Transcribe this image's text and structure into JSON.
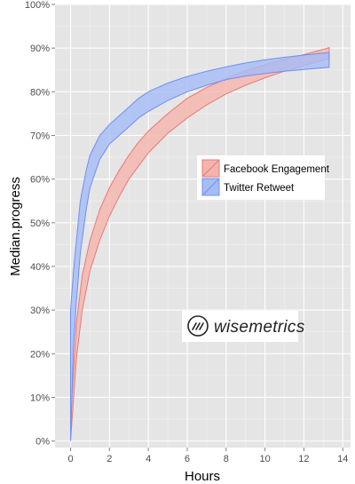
{
  "chart_data": {
    "type": "area",
    "xlabel": "Hours",
    "ylabel": "Median.progress",
    "xlim": [
      -0.8,
      14.4
    ],
    "ylim": [
      -0.015,
      1.0
    ],
    "x_ticks": [
      0,
      2,
      4,
      6,
      8,
      10,
      12,
      14
    ],
    "x_tick_labels": [
      "0",
      "2",
      "4",
      "6",
      "8",
      "10",
      "12",
      "14"
    ],
    "y_ticks": [
      0,
      0.1,
      0.2,
      0.3,
      0.4,
      0.5,
      0.6,
      0.7,
      0.8,
      0.9,
      1.0
    ],
    "y_tick_labels": [
      "0%",
      "10%",
      "20%",
      "30%",
      "40%",
      "50%",
      "60%",
      "70%",
      "80%",
      "90%",
      "100%"
    ],
    "grid": true,
    "legend_position": "right",
    "series": [
      {
        "name": "Facebook Engagement",
        "color": "#e87a72",
        "fill": "#f4b4ac",
        "x": [
          0,
          0.3,
          0.6,
          1.0,
          1.5,
          2.0,
          2.5,
          3.0,
          3.5,
          4.0,
          5.0,
          6.0,
          7.0,
          8.0,
          9.0,
          10.0,
          11.0,
          12.0,
          13.3
        ],
        "upper": [
          0.05,
          0.27,
          0.38,
          0.46,
          0.53,
          0.58,
          0.62,
          0.655,
          0.685,
          0.71,
          0.75,
          0.785,
          0.81,
          0.83,
          0.848,
          0.862,
          0.874,
          0.885,
          0.901
        ],
        "lower": [
          0.0,
          0.19,
          0.3,
          0.39,
          0.46,
          0.515,
          0.56,
          0.6,
          0.63,
          0.66,
          0.705,
          0.74,
          0.77,
          0.795,
          0.815,
          0.832,
          0.847,
          0.86,
          0.876
        ]
      },
      {
        "name": "Twitter Retweet",
        "color": "#6f8ff0",
        "fill": "#a6bcf6",
        "x": [
          0,
          0.15,
          0.3,
          0.5,
          0.8,
          1.0,
          1.5,
          2.0,
          2.5,
          3.0,
          3.5,
          4.0,
          5.0,
          6.0,
          7.0,
          8.0,
          9.0,
          10.0,
          11.0,
          12.0,
          13.3
        ],
        "upper": [
          0.3,
          0.39,
          0.46,
          0.55,
          0.62,
          0.655,
          0.7,
          0.725,
          0.745,
          0.765,
          0.785,
          0.8,
          0.82,
          0.835,
          0.847,
          0.857,
          0.866,
          0.873,
          0.879,
          0.884,
          0.89
        ],
        "lower": [
          0.0,
          0.22,
          0.32,
          0.43,
          0.53,
          0.58,
          0.645,
          0.68,
          0.7,
          0.72,
          0.74,
          0.755,
          0.78,
          0.8,
          0.815,
          0.828,
          0.836,
          0.842,
          0.847,
          0.851,
          0.856
        ]
      }
    ]
  },
  "watermark": {
    "text": "wisemetrics",
    "icon": "wisemetrics-logo-icon"
  }
}
